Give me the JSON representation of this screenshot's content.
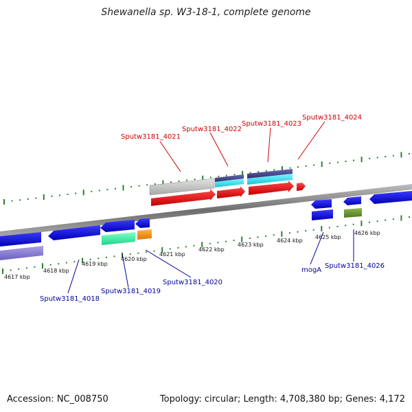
{
  "title": "Shewanella sp. W3-18-1, complete genome",
  "footer": {
    "accession": "Accession: NC_008750",
    "summary": "Topology: circular; Length: 4,708,380 bp; Genes: 4,172"
  },
  "colors": {
    "tick": "#2f7d2f",
    "backbone": "#8a8a8a",
    "label_top": "#cc0000",
    "label_bottom": "#000099",
    "ruler_label": "#111111"
  },
  "ruler_labels": [
    "4617 kbp",
    "4618 kbp",
    "4619 kbp",
    "4620 kbp",
    "4621 kbp",
    "4622 kbp",
    "4623 kbp",
    "4624 kbp",
    "4625 kbp",
    "4626 kbp"
  ],
  "top_labels": [
    "Sputw3181_4021",
    "Sputw3181_4022",
    "Sputw3181_4023",
    "Sputw3181_4024"
  ],
  "bottom_labels": [
    "Sputw3181_4018",
    "Sputw3181_4019",
    "Sputw3181_4020",
    "mogA",
    "Sputw3181_4026"
  ]
}
